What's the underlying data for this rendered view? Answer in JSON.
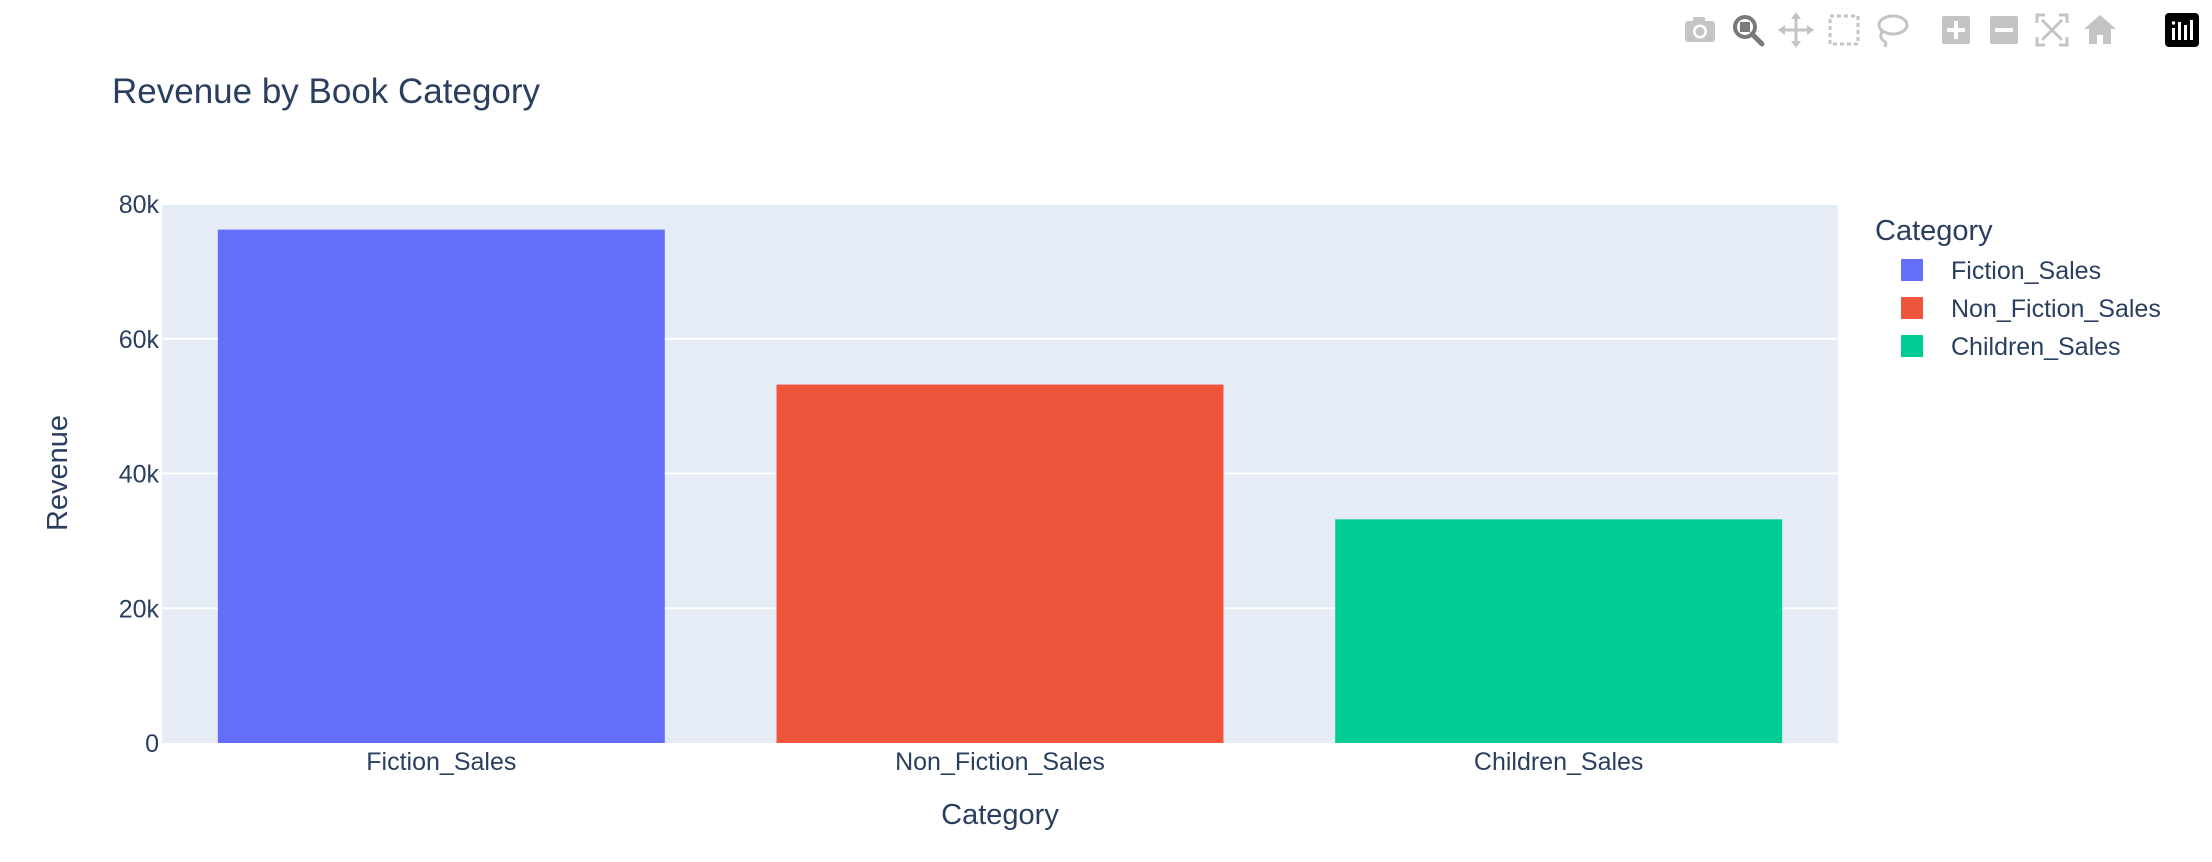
{
  "toolbar": {
    "buttons": [
      {
        "name": "camera-icon",
        "active": false
      },
      {
        "name": "zoom-icon",
        "active": true
      },
      {
        "name": "pan-icon",
        "active": false
      },
      {
        "name": "box-select-icon",
        "active": false
      },
      {
        "name": "lasso-select-icon",
        "active": false
      },
      {
        "name": "zoom-in-icon",
        "active": false
      },
      {
        "name": "zoom-out-icon",
        "active": false
      },
      {
        "name": "autoscale-icon",
        "active": false
      },
      {
        "name": "reset-axes-icon",
        "active": false
      },
      {
        "name": "plotly-logo-icon",
        "active": false
      }
    ]
  },
  "colors": {
    "plot_bg": "#e5ecf6",
    "grid": "#ffffff",
    "text": "#2a3f5f",
    "modebar_icon": "#c4c4c4",
    "modebar_active": "#7a7a7a"
  },
  "chart_data": {
    "type": "bar",
    "title": "Revenue by Book Category",
    "xlabel": "Category",
    "ylabel": "Revenue",
    "categories": [
      "Fiction_Sales",
      "Non_Fiction_Sales",
      "Children_Sales"
    ],
    "values": [
      76200,
      53200,
      33200
    ],
    "colors": [
      "#636efa",
      "#ef553b",
      "#00cc96"
    ],
    "ylim": [
      0,
      80000
    ],
    "yticks": [
      0,
      20000,
      40000,
      60000,
      80000
    ],
    "ytick_labels": [
      "0",
      "20k",
      "40k",
      "60k",
      "80k"
    ],
    "grid": true,
    "legend": {
      "title": "Category",
      "placement": "right",
      "entries": [
        "Fiction_Sales",
        "Non_Fiction_Sales",
        "Children_Sales"
      ]
    }
  }
}
